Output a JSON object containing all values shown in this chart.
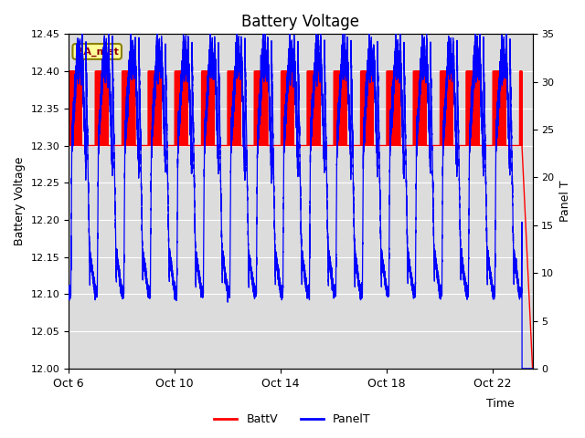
{
  "title": "Battery Voltage",
  "xlabel": "Time",
  "ylabel_left": "Battery Voltage",
  "ylabel_right": "Panel T",
  "ylim_left": [
    12.0,
    12.45
  ],
  "ylim_right": [
    0,
    35
  ],
  "yticks_left": [
    12.0,
    12.05,
    12.1,
    12.15,
    12.2,
    12.25,
    12.3,
    12.35,
    12.4,
    12.45
  ],
  "yticks_right": [
    0,
    5,
    10,
    15,
    20,
    25,
    30,
    35
  ],
  "x_tick_labels": [
    "Oct 6",
    "Oct 10",
    "Oct 14",
    "Oct 18",
    "Oct 22"
  ],
  "x_tick_positions": [
    0,
    4,
    8,
    12,
    16
  ],
  "xlim": [
    0,
    17.5
  ],
  "background_color": "#ffffff",
  "plot_bg_color": "#dcdcdc",
  "legend_items": [
    "BattV",
    "PanelT"
  ],
  "legend_colors": [
    "#ff0000",
    "#0000ff"
  ],
  "annotation_text": "BA_met",
  "annotation_bg": "#ffff99",
  "annotation_border": "#8B8000",
  "grid_color": "#ffffff",
  "battv_color": "#ff0000",
  "panelt_color": "#0000ff",
  "title_fontsize": 12,
  "panelt_night_min": 8.0,
  "panelt_day_peak": 34.0,
  "battv_high": 12.4,
  "battv_low": 12.3,
  "battv_end": 12.0,
  "n_days": 17.5,
  "end_drop_day": 17.1
}
